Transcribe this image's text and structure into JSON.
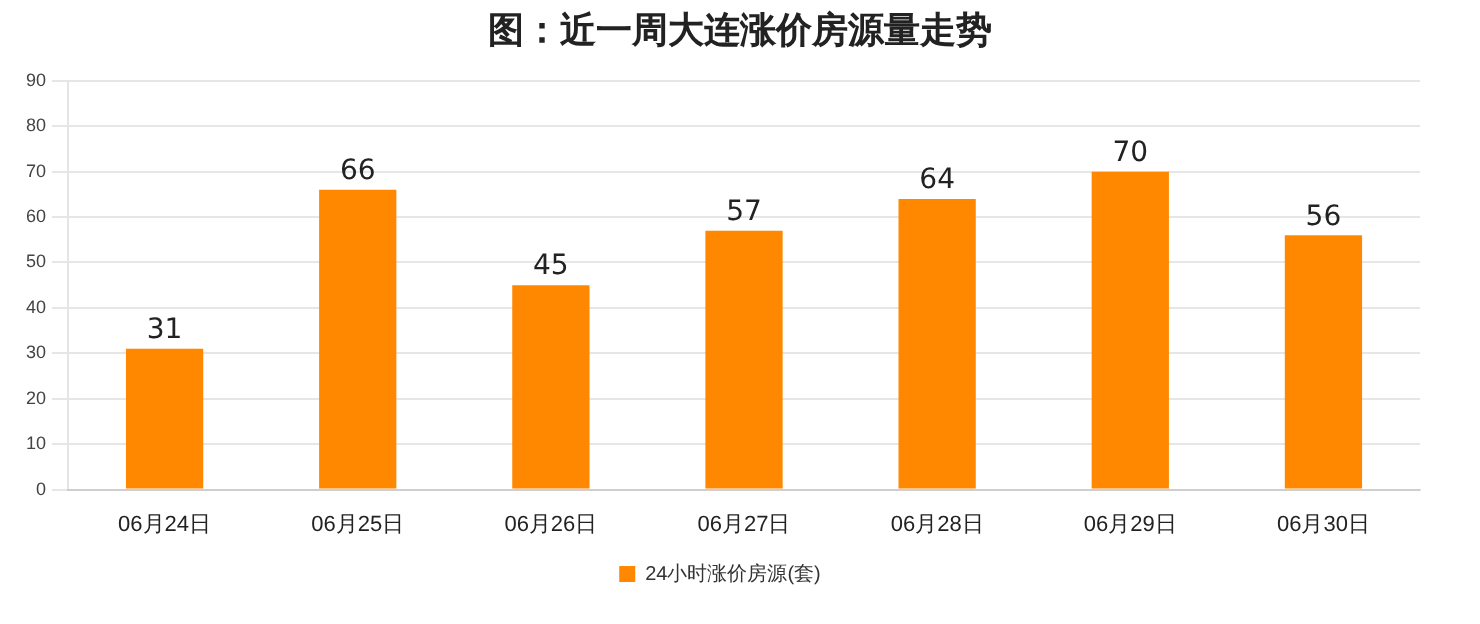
{
  "chart_data": {
    "type": "bar",
    "title": "图：近一周大连涨价房源量走势",
    "categories": [
      "06月24日",
      "06月25日",
      "06月26日",
      "06月27日",
      "06月28日",
      "06月29日",
      "06月30日"
    ],
    "series": [
      {
        "name": "24小时涨价房源(套)",
        "color": "#ff8800",
        "values": [
          31,
          66,
          45,
          57,
          64,
          70,
          56
        ]
      }
    ],
    "ylim": [
      0,
      90
    ],
    "yticks": [
      0,
      10,
      20,
      30,
      40,
      50,
      60,
      70,
      80,
      90
    ],
    "grid": "y",
    "legend": "bottom",
    "data_labels": true
  }
}
